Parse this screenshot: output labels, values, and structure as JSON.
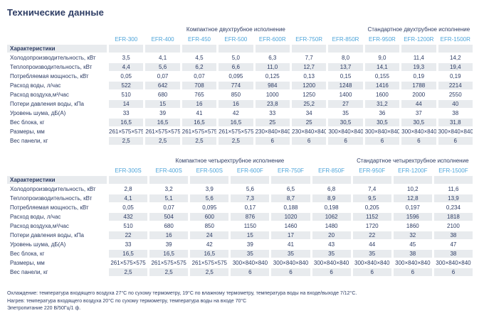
{
  "page_title": "Технические данные",
  "tables": [
    {
      "group_headers": [
        {
          "label": "Компактное двухтрубное исполнение",
          "span": 7
        },
        {
          "label": "Стандартное двухтрубное исполнение",
          "span": 3
        }
      ],
      "section_header": "Характеристики",
      "models": [
        "EFR-300",
        "EFR-400",
        "EFR-450",
        "EFR-500",
        "EFR-600R",
        "EFR-750R",
        "EFR-850R",
        "EFR-950R",
        "EFR-1200R",
        "EFR-1500R"
      ],
      "rows": [
        {
          "label": "Холодопроизводительность, кВт",
          "values": [
            "3,5",
            "4,1",
            "4,5",
            "5,0",
            "6,3",
            "7,7",
            "8,0",
            "9,0",
            "11,4",
            "14,2"
          ]
        },
        {
          "label": "Теплопроизводительность, кВт",
          "values": [
            "4,4",
            "5,6",
            "6,2",
            "6,6",
            "11,0",
            "12,7",
            "13,7",
            "14,1",
            "19,3",
            "19,4"
          ]
        },
        {
          "label": "Потребляемая мощность, кВт",
          "values": [
            "0,05",
            "0,07",
            "0,07",
            "0,095",
            "0,125",
            "0,13",
            "0,15",
            "0,155",
            "0,19",
            "0,19"
          ]
        },
        {
          "label": "Расход воды, л/час",
          "values": [
            "522",
            "642",
            "708",
            "774",
            "984",
            "1200",
            "1248",
            "1416",
            "1788",
            "2214"
          ]
        },
        {
          "label": "Расход воздуха,м³/час",
          "values": [
            "510",
            "680",
            "765",
            "850",
            "1000",
            "1250",
            "1400",
            "1600",
            "2000",
            "2550"
          ]
        },
        {
          "label": "Потери давления воды, кПа",
          "values": [
            "14",
            "15",
            "16",
            "16",
            "23,8",
            "25,2",
            "27",
            "31,2",
            "44",
            "40"
          ]
        },
        {
          "label": "Уровень шума, дБ(А)",
          "values": [
            "33",
            "39",
            "41",
            "42",
            "33",
            "34",
            "35",
            "36",
            "37",
            "38"
          ]
        },
        {
          "label": "Вес блока, кг",
          "values": [
            "16,5",
            "16,5",
            "16,5",
            "16,5",
            "25",
            "25",
            "30,5",
            "30,5",
            "30,5",
            "31,8"
          ]
        },
        {
          "label": "Размеры, мм",
          "values": [
            "261×575×575",
            "261×575×575",
            "261×575×575",
            "261×575×575",
            "230×840×840",
            "230×840×840",
            "300×840×840",
            "300×840×840",
            "300×840×840",
            "300×840×840"
          ]
        },
        {
          "label": "Вес панели, кг",
          "values": [
            "2,5",
            "2,5",
            "2,5",
            "2,5",
            "6",
            "6",
            "6",
            "6",
            "6",
            "6"
          ]
        }
      ]
    },
    {
      "group_headers": [
        {
          "label": "Компактное четырехтрубное исполнение",
          "span": 6
        },
        {
          "label": "Стандартное четырехтрубное исполнение",
          "span": 3
        }
      ],
      "section_header": "Характеристики",
      "models": [
        "EFR-300S",
        "EFR-400S",
        "EFR-500S",
        "EFR-600F",
        "EFR-750F",
        "EFR-850F",
        "EFR-950F",
        "EFR-1200F",
        "EFR-1500F"
      ],
      "rows": [
        {
          "label": "Холодопроизводительность, кВт",
          "values": [
            "2,8",
            "3,2",
            "3,9",
            "5,6",
            "6,5",
            "6,8",
            "7,4",
            "10,2",
            "11,6"
          ]
        },
        {
          "label": "Теплопроизводительность, кВт",
          "values": [
            "4,1",
            "5,1",
            "5,6",
            "7,3",
            "8,7",
            "8,9",
            "9,5",
            "12,8",
            "13,9"
          ]
        },
        {
          "label": "Потребляемая мощность, кВт",
          "values": [
            "0,05",
            "0,07",
            "0,095",
            "0,17",
            "0,188",
            "0,198",
            "0,205",
            "0,197",
            "0,234"
          ]
        },
        {
          "label": "Расход воды, л/час",
          "values": [
            "432",
            "504",
            "600",
            "876",
            "1020",
            "1062",
            "1152",
            "1596",
            "1818"
          ]
        },
        {
          "label": "Расход воздуха,м³/час",
          "values": [
            "510",
            "680",
            "850",
            "1150",
            "1460",
            "1480",
            "1720",
            "1860",
            "2100"
          ]
        },
        {
          "label": "Потери давления воды, кПа",
          "values": [
            "22",
            "16",
            "24",
            "15",
            "17",
            "20",
            "22",
            "32",
            "38"
          ]
        },
        {
          "label": "Уровень шума, дБ(А)",
          "values": [
            "33",
            "39",
            "42",
            "39",
            "41",
            "43",
            "44",
            "45",
            "47"
          ]
        },
        {
          "label": "Вес блока, кг",
          "values": [
            "16,5",
            "16,5",
            "16,5",
            "35",
            "35",
            "35",
            "35",
            "38",
            "38"
          ]
        },
        {
          "label": "Размеры, мм",
          "values": [
            "261×575×575",
            "261×575×575",
            "261×575×575",
            "300×840×840",
            "300×840×840",
            "300×840×840",
            "300×840×840",
            "300×840×840",
            "300×840×840"
          ]
        },
        {
          "label": "Вес панели, кг",
          "values": [
            "2,5",
            "2,5",
            "2,5",
            "6",
            "6",
            "6",
            "6",
            "6",
            "6"
          ]
        }
      ]
    }
  ],
  "footnotes": [
    "Охлаждение: температура входящего воздуха 27°С по сухому термометру, 19°С по влажному термометру, температура воды на входе/выходе 7/12°С.",
    "Нагрев: температура входящего воздуха 20°С по сухому термометру, температура воды на входе 70°С",
    "Элетропитание 220 В/50Гц/1 ф."
  ],
  "colors": {
    "text_navy": "#2d3c64",
    "model_blue": "#4ea4d9",
    "cell_gray": "#e8ebee",
    "background": "#ffffff"
  }
}
